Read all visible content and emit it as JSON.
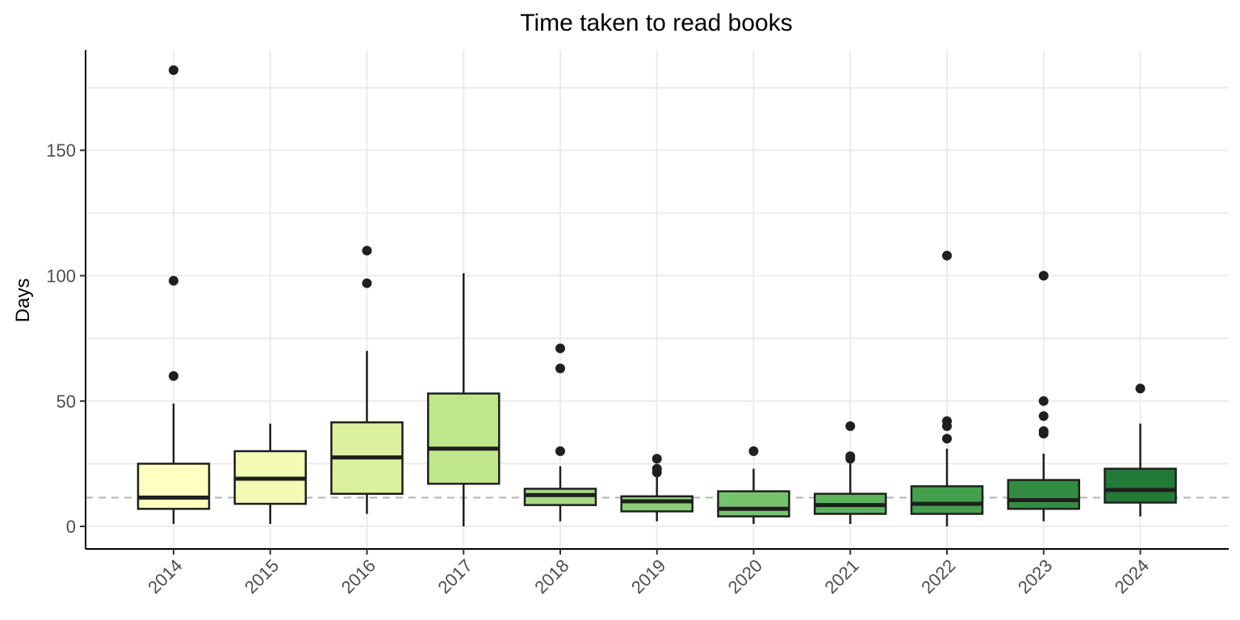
{
  "chart_data": {
    "type": "boxplot",
    "title": "Time taken to read books",
    "xlabel": "",
    "ylabel": "Days",
    "ylim": [
      -9,
      190
    ],
    "yticks": [
      0,
      50,
      100,
      150
    ],
    "grid": true,
    "reference_line": {
      "value": 11.5,
      "style": "dashed",
      "color": "#b3b3b3"
    },
    "categories": [
      "2014",
      "2015",
      "2016",
      "2017",
      "2018",
      "2019",
      "2020",
      "2021",
      "2022",
      "2023",
      "2024"
    ],
    "boxes": [
      {
        "category": "2014",
        "whisker_low": 1,
        "q1": 7,
        "median": 11.5,
        "q3": 25,
        "whisker_high": 49,
        "outliers": [
          60,
          98,
          182
        ],
        "fill": "#ffffc0"
      },
      {
        "category": "2015",
        "whisker_low": 1,
        "q1": 9,
        "median": 19,
        "q3": 30,
        "whisker_high": 41,
        "outliers": [],
        "fill": "#f2fab3"
      },
      {
        "category": "2016",
        "whisker_low": 5,
        "q1": 13,
        "median": 27.5,
        "q3": 41.5,
        "whisker_high": 70,
        "outliers": [
          97,
          110
        ],
        "fill": "#dbf09c"
      },
      {
        "category": "2017",
        "whisker_low": 0,
        "q1": 17,
        "median": 31,
        "q3": 53,
        "whisker_high": 101,
        "outliers": [],
        "fill": "#c0e68c"
      },
      {
        "category": "2018",
        "whisker_low": 2,
        "q1": 8.5,
        "median": 12.5,
        "q3": 15,
        "whisker_high": 24,
        "outliers": [
          30,
          63,
          71
        ],
        "fill": "#a6da84"
      },
      {
        "category": "2019",
        "whisker_low": 2,
        "q1": 6,
        "median": 10,
        "q3": 12,
        "whisker_high": 20,
        "outliers": [
          21.5,
          23,
          27
        ],
        "fill": "#8cce7a"
      },
      {
        "category": "2020",
        "whisker_low": 1,
        "q1": 4,
        "median": 7,
        "q3": 14,
        "whisker_high": 23,
        "outliers": [
          30
        ],
        "fill": "#74c46c"
      },
      {
        "category": "2021",
        "whisker_low": 1,
        "q1": 5,
        "median": 8.5,
        "q3": 13,
        "whisker_high": 25,
        "outliers": [
          27,
          28,
          40
        ],
        "fill": "#5cb45c"
      },
      {
        "category": "2022",
        "whisker_low": 0,
        "q1": 5,
        "median": 9,
        "q3": 16,
        "whisker_high": 31,
        "outliers": [
          35,
          40,
          42,
          108
        ],
        "fill": "#45a04d"
      },
      {
        "category": "2023",
        "whisker_low": 2,
        "q1": 7,
        "median": 10.5,
        "q3": 18.5,
        "whisker_high": 29,
        "outliers": [
          37,
          38,
          44,
          50,
          100
        ],
        "fill": "#338c42"
      },
      {
        "category": "2024",
        "whisker_low": 4,
        "q1": 9.5,
        "median": 14.5,
        "q3": 23,
        "whisker_high": 41,
        "outliers": [
          55
        ],
        "fill": "#217a36"
      }
    ]
  }
}
